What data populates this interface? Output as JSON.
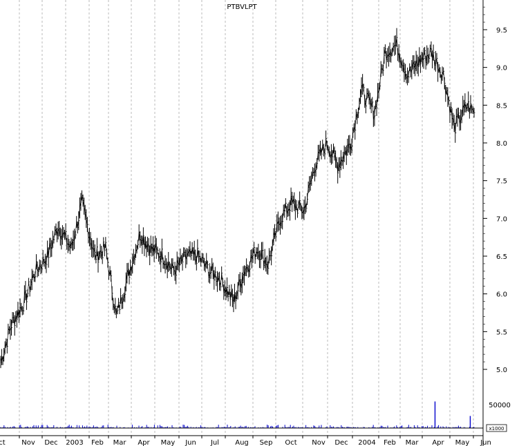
{
  "chart_data": {
    "type": "line",
    "title": "PTBVLPT",
    "price_axis": {
      "min": 4.9,
      "max": 9.85,
      "ticks": [
        "9.5",
        "9.0",
        "8.5",
        "8.0",
        "7.5",
        "7.0",
        "6.5",
        "6.0",
        "5.5",
        "5.0"
      ]
    },
    "volume_axis": {
      "max": 60000,
      "tick": "50000",
      "unit_label": "x1000"
    },
    "x_labels": [
      "ct",
      "Nov",
      "Dec",
      "2003",
      "Feb",
      "Mar",
      "Apr",
      "May",
      "Jun",
      "Jul",
      "Aug",
      "Sep",
      "Oct",
      "Nov",
      "Dec",
      "2004",
      "Feb",
      "Mar",
      "Apr",
      "May",
      "Jun"
    ],
    "price_series": {
      "name": "PTBVLPT",
      "dates": [
        "2002-10-01",
        "2002-10-15",
        "2002-11-01",
        "2002-11-15",
        "2002-12-01",
        "2002-12-15",
        "2003-01-01",
        "2003-01-15",
        "2003-02-01",
        "2003-02-15",
        "2003-03-01",
        "2003-03-15",
        "2003-04-01",
        "2003-04-15",
        "2003-05-01",
        "2003-05-15",
        "2003-06-01",
        "2003-06-15",
        "2003-07-01",
        "2003-07-15",
        "2003-08-01",
        "2003-08-15",
        "2003-09-01",
        "2003-09-15",
        "2003-10-01",
        "2003-10-15",
        "2003-11-01",
        "2003-11-15",
        "2003-12-01",
        "2003-12-15",
        "2004-01-01",
        "2004-01-15",
        "2004-02-01",
        "2004-02-15",
        "2004-03-01",
        "2004-03-15",
        "2004-04-01",
        "2004-04-15",
        "2004-05-01",
        "2004-05-15",
        "2004-06-01",
        "2004-06-10"
      ],
      "values": [
        5.1,
        5.6,
        5.9,
        6.3,
        6.5,
        6.9,
        6.6,
        7.2,
        6.5,
        6.6,
        5.7,
        6.2,
        6.8,
        6.6,
        6.5,
        6.3,
        6.5,
        6.5,
        6.3,
        6.2,
        5.9,
        6.3,
        6.6,
        6.4,
        7.0,
        7.2,
        7.1,
        7.7,
        8.0,
        7.7,
        8.0,
        8.7,
        8.4,
        9.2,
        9.3,
        8.9,
        9.1,
        9.2,
        8.9,
        8.2,
        8.5,
        8.4
      ]
    },
    "volume_series": {
      "name": "Volume",
      "spike_dates": [
        "2004-04-20",
        "2004-06-05"
      ],
      "spike_values": [
        55000,
        25000
      ]
    },
    "grid": "vertical dashed",
    "legend": "none"
  }
}
